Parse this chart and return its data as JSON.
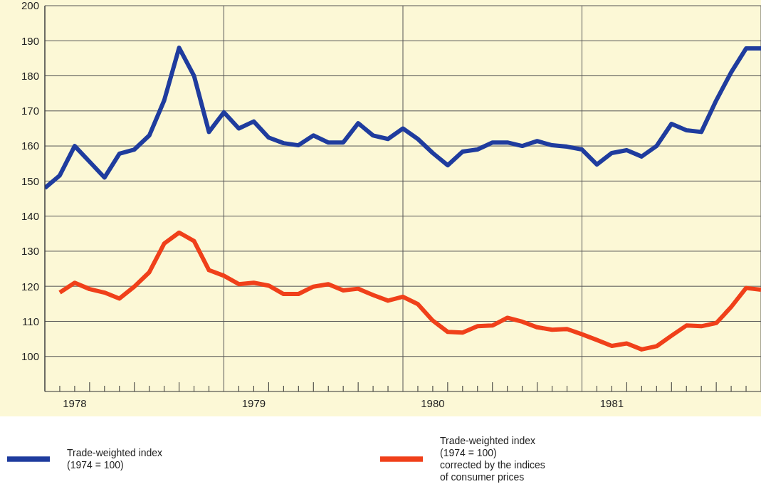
{
  "chart_data": {
    "type": "line",
    "legend": "bottom",
    "grid": true,
    "line_style": "solid",
    "ylim": [
      90,
      200
    ],
    "yticks": [
      100,
      110,
      120,
      130,
      140,
      150,
      160,
      170,
      180,
      190,
      200
    ],
    "xlim": [
      "1978-01",
      "1982-01"
    ],
    "xticks": [
      {
        "value": "1978-01",
        "label": null
      },
      {
        "value": "1978-02",
        "label": null
      },
      {
        "value": "1978-03",
        "label": "1978"
      },
      {
        "value": "1978-04",
        "label": null
      },
      {
        "value": "1978-05",
        "label": null
      },
      {
        "value": "1978-06",
        "label": null
      },
      {
        "value": "1978-07",
        "label": null
      },
      {
        "value": "1978-08",
        "label": null
      },
      {
        "value": "1978-09",
        "label": null
      },
      {
        "value": "1978-10",
        "label": null
      },
      {
        "value": "1978-11",
        "label": null
      },
      {
        "value": "1978-12",
        "label": null
      },
      {
        "value": "1979-01",
        "label": null
      },
      {
        "value": "1979-02",
        "label": null
      },
      {
        "value": "1979-03",
        "label": "1979"
      },
      {
        "value": "1979-04",
        "label": null
      },
      {
        "value": "1979-05",
        "label": null
      },
      {
        "value": "1979-06",
        "label": null
      },
      {
        "value": "1979-07",
        "label": null
      },
      {
        "value": "1979-08",
        "label": null
      },
      {
        "value": "1979-09",
        "label": null
      },
      {
        "value": "1979-10",
        "label": null
      },
      {
        "value": "1979-11",
        "label": null
      },
      {
        "value": "1979-12",
        "label": null
      },
      {
        "value": "1980-01",
        "label": null
      },
      {
        "value": "1980-02",
        "label": null
      },
      {
        "value": "1980-03",
        "label": "1980"
      },
      {
        "value": "1980-04",
        "label": null
      },
      {
        "value": "1980-05",
        "label": null
      },
      {
        "value": "1980-06",
        "label": null
      },
      {
        "value": "1980-07",
        "label": null
      },
      {
        "value": "1980-08",
        "label": null
      },
      {
        "value": "1980-09",
        "label": null
      },
      {
        "value": "1980-10",
        "label": null
      },
      {
        "value": "1980-11",
        "label": null
      },
      {
        "value": "1980-12",
        "label": null
      },
      {
        "value": "1981-01",
        "label": null
      },
      {
        "value": "1981-02",
        "label": null
      },
      {
        "value": "1981-03",
        "label": "1981"
      },
      {
        "value": "1981-04",
        "label": null
      },
      {
        "value": "1981-05",
        "label": null
      },
      {
        "value": "1981-06",
        "label": null
      },
      {
        "value": "1981-07",
        "label": null
      },
      {
        "value": "1981-08",
        "label": null
      },
      {
        "value": "1981-09",
        "label": null
      },
      {
        "value": "1981-10",
        "label": null
      },
      {
        "value": "1981-11",
        "label": null
      },
      {
        "value": "1981-12",
        "label": null
      },
      {
        "value": "1982-01",
        "label": null
      }
    ],
    "series": [
      {
        "name": "Trade-weighted index\n(1974 = 100)",
        "color": "#1f3c9e",
        "x": [
          "1978-01",
          "1978-02",
          "1978-03",
          "1978-04",
          "1978-05",
          "1978-06",
          "1978-07",
          "1978-08",
          "1978-09",
          "1978-10",
          "1978-11",
          "1978-12",
          "1979-01",
          "1979-02",
          "1979-03",
          "1979-04",
          "1979-05",
          "1979-06",
          "1979-07",
          "1979-08",
          "1979-09",
          "1979-10",
          "1979-11",
          "1979-12",
          "1980-01",
          "1980-02",
          "1980-03",
          "1980-04",
          "1980-05",
          "1980-06",
          "1980-07",
          "1980-08",
          "1980-09",
          "1980-10",
          "1980-11",
          "1980-12",
          "1981-01",
          "1981-02",
          "1981-03",
          "1981-04",
          "1981-05",
          "1981-06",
          "1981-07",
          "1981-08",
          "1981-09",
          "1981-10",
          "1981-11",
          "1981-12",
          "1982-01"
        ],
        "values": [
          148,
          151.6,
          160,
          155.5,
          151,
          157.8,
          159,
          163,
          173,
          188,
          180,
          164,
          169.6,
          165,
          167,
          162.4,
          160.8,
          160.2,
          163,
          161,
          161,
          166.5,
          163,
          162,
          165,
          162,
          158,
          154.5,
          158.4,
          159,
          161,
          161,
          160,
          161.4,
          160.2,
          159.8,
          159,
          154.7,
          158,
          158.8,
          157,
          160,
          166.3,
          164.5,
          164,
          173,
          181,
          187.8,
          187.8
        ]
      },
      {
        "name": "Trade-weighted index\n(1974 = 100)\ncorrected by the indices\nof consumer prices",
        "color": "#f0401a",
        "x": [
          "1978-02",
          "1978-03",
          "1978-04",
          "1978-05",
          "1978-06",
          "1978-07",
          "1978-08",
          "1978-09",
          "1978-10",
          "1978-11",
          "1978-12",
          "1979-01",
          "1979-02",
          "1979-03",
          "1979-04",
          "1979-05",
          "1979-06",
          "1979-07",
          "1979-08",
          "1979-09",
          "1979-10",
          "1979-11",
          "1979-12",
          "1980-01",
          "1980-02",
          "1980-03",
          "1980-04",
          "1980-05",
          "1980-06",
          "1980-07",
          "1980-08",
          "1980-09",
          "1980-10",
          "1980-11",
          "1980-12",
          "1981-01",
          "1981-02",
          "1981-03",
          "1981-04",
          "1981-05",
          "1981-06",
          "1981-07",
          "1981-08",
          "1981-09",
          "1981-10",
          "1981-11",
          "1981-12",
          "1982-01"
        ],
        "values": [
          118.2,
          121,
          119.2,
          118.2,
          116.5,
          119.9,
          124,
          132.2,
          135.3,
          132.9,
          124.6,
          123,
          120.6,
          121,
          120.2,
          117.8,
          117.8,
          119.9,
          120.6,
          118.8,
          119.3,
          117.5,
          115.9,
          117,
          114.9,
          110.2,
          107,
          106.8,
          108.6,
          108.8,
          111,
          109.9,
          108.3,
          107.6,
          107.8,
          106.3,
          104.7,
          103,
          103.7,
          102,
          102.9,
          105.9,
          108.8,
          108.6,
          109.5,
          114.1,
          119.5,
          119
        ]
      }
    ]
  }
}
